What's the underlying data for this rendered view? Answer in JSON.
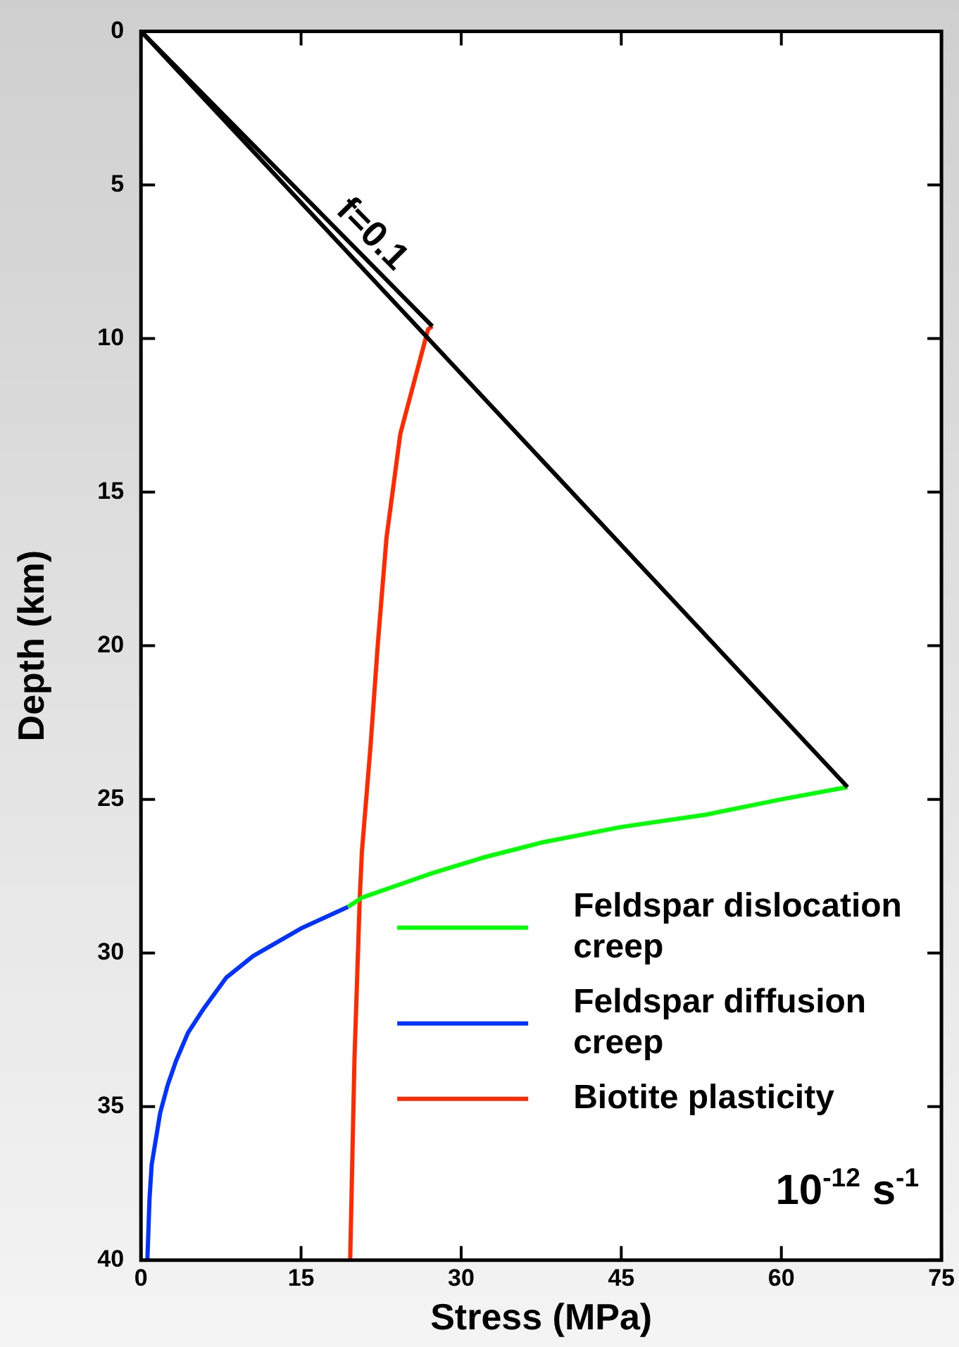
{
  "chart_data": {
    "type": "line",
    "xlabel": "Stress (MPa)",
    "ylabel": "Depth (km)",
    "xlim": [
      0,
      75
    ],
    "xticks": [
      0,
      15,
      30,
      45,
      60,
      75
    ],
    "ylim": [
      40,
      0
    ],
    "yticks": [
      0,
      5,
      10,
      15,
      20,
      25,
      30,
      35,
      40
    ],
    "grid": false,
    "legend": "bottom right",
    "marker": "none",
    "line_style": "solid",
    "series": [
      {
        "color": "#000000",
        "x": [
          0,
          66.2
        ],
        "values": [
          0,
          24.6
        ]
      },
      {
        "color": "#000000",
        "x": [
          0,
          27.3
        ],
        "values": [
          0,
          9.6
        ]
      },
      {
        "name": "Feldspar dislocation creep",
        "color": "#00ff00",
        "x": [
          66.2,
          60,
          52.9,
          45,
          37.6,
          32,
          27.3,
          24,
          20.7,
          19.4
        ],
        "values": [
          24.6,
          25.0,
          25.5,
          25.9,
          26.4,
          26.9,
          27.4,
          27.8,
          28.2,
          28.5
        ]
      },
      {
        "name": "Feldspar diffusion creep",
        "color": "#0033ff",
        "x": [
          19.4,
          15,
          10.5,
          8,
          5.9,
          4.4,
          3.3,
          2.5,
          1.8,
          1.0,
          0.8,
          0.6
        ],
        "values": [
          28.5,
          29.2,
          30.1,
          30.8,
          31.8,
          32.6,
          33.5,
          34.3,
          35.2,
          36.9,
          38,
          40
        ]
      },
      {
        "name": "Biotite plasticity",
        "color": "#ff2a00",
        "x": [
          27.3,
          26.9,
          24.3,
          23.0,
          22.2,
          21.5,
          20.7,
          20.5,
          20.0,
          19.6
        ],
        "values": [
          9.6,
          9.7,
          13.1,
          16.5,
          19.9,
          23.3,
          26.7,
          28.2,
          33.5,
          40
        ]
      }
    ],
    "annotations": [
      "f=0.1",
      "10$^{-12}$ s$^{-1}$"
    ]
  }
}
